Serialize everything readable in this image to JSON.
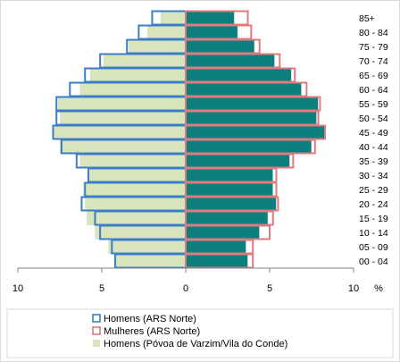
{
  "chart_data": {
    "type": "bar",
    "orientation": "horizontal",
    "title": "",
    "xlabel": "",
    "ylabel": "",
    "x_unit": "%",
    "xlim": [
      -10,
      10
    ],
    "x_ticks": [
      -10,
      -5,
      0,
      5,
      10
    ],
    "x_tick_labels": [
      "10",
      "5",
      "0",
      "5",
      "10"
    ],
    "categories": [
      "00 - 04",
      "05 - 09",
      "10 - 14",
      "15 - 19",
      "20 - 24",
      "25 - 29",
      "30 - 34",
      "35 - 39",
      "40 - 44",
      "45 - 49",
      "50 - 54",
      "55 - 59",
      "60 - 64",
      "65 - 69",
      "70 - 74",
      "75 - 79",
      "80 - 84",
      "85+"
    ],
    "series": [
      {
        "name": "Homens (ARS Norte)",
        "side": "left",
        "style": "outline",
        "color": "#3b7ec8",
        "values": [
          4.2,
          4.4,
          5.1,
          5.4,
          6.2,
          6.0,
          5.8,
          6.5,
          7.4,
          7.9,
          7.7,
          7.7,
          6.9,
          6.0,
          5.1,
          3.5,
          2.8,
          2.0
        ]
      },
      {
        "name": "Mulheres (ARS Norte)",
        "side": "right",
        "style": "outline",
        "color": "#e0797e",
        "values": [
          4.0,
          4.0,
          5.0,
          5.2,
          5.5,
          5.4,
          5.4,
          6.4,
          7.7,
          8.3,
          7.9,
          8.0,
          7.2,
          6.5,
          5.6,
          4.4,
          3.9,
          3.7
        ]
      },
      {
        "name": "Homens (Póvoa de Varzim/Vila do Conde)",
        "side": "left",
        "style": "fill",
        "color": "#d8e4bc",
        "values": [
          4.2,
          4.6,
          5.4,
          5.9,
          6.0,
          6.1,
          5.8,
          6.3,
          7.5,
          7.9,
          7.5,
          7.6,
          6.3,
          5.7,
          4.9,
          3.4,
          2.3,
          1.5
        ]
      },
      {
        "name": "",
        "side": "right",
        "style": "fill",
        "color": "#0e7f7f",
        "values": [
          3.7,
          3.6,
          4.4,
          4.9,
          5.4,
          5.2,
          5.2,
          6.2,
          7.5,
          8.3,
          7.8,
          7.9,
          6.9,
          6.3,
          5.3,
          4.1,
          3.1,
          2.9
        ]
      }
    ],
    "grid": false,
    "legend_placement": "bottom-left"
  },
  "colors": {
    "men_outline": "#3b7ec8",
    "women_outline": "#e0797e",
    "men_local_fill": "#d8e4bc",
    "women_local_fill": "#0e7f7f",
    "axis": "#808080"
  }
}
